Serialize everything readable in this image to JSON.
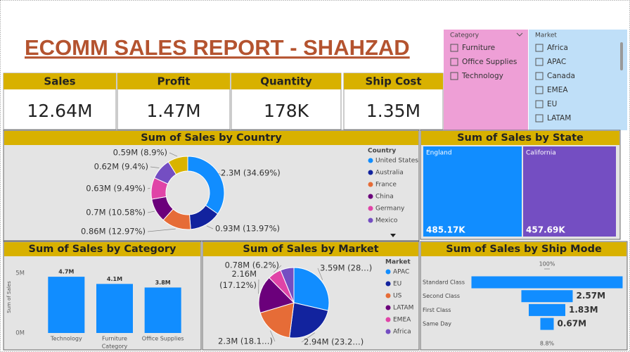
{
  "header": {
    "title": "ECOMM SALES REPORT - SHAHZAD"
  },
  "kpis": [
    {
      "label": "Sales",
      "value": "12.64M"
    },
    {
      "label": "Profit",
      "value": "1.47M"
    },
    {
      "label": "Quantity",
      "value": "178K"
    },
    {
      "label": "Ship Cost",
      "value": "1.35M"
    }
  ],
  "slicers": [
    {
      "title": "Category",
      "items": [
        "Furniture",
        "Office Supplies",
        "Technology"
      ]
    },
    {
      "title": "Market",
      "items": [
        "Africa",
        "APAC",
        "Canada",
        "EMEA",
        "EU",
        "LATAM"
      ]
    }
  ],
  "chart_data": [
    {
      "type": "donut",
      "title": "Sum of Sales by Country",
      "legend_title": "Country",
      "categories": [
        "United States",
        "Australia",
        "France",
        "China",
        "Germany",
        "Mexico",
        null
      ],
      "values": [
        2.3,
        0.93,
        0.86,
        0.7,
        0.63,
        0.62,
        0.59
      ],
      "value_labels": [
        "2.3M (34.69%)",
        "0.93M (13.97%)",
        "0.86M (12.97%)",
        "0.7M (10.58%)",
        "0.63M (9.49%)",
        "0.62M (9.4%)",
        "0.59M (8.9%)"
      ],
      "colors": [
        "#118dff",
        "#12239e",
        "#e66c37",
        "#6b007b",
        "#e044a7",
        "#744ec2",
        "#d9b300"
      ]
    },
    {
      "type": "treemap",
      "title": "Sum of Sales by State",
      "categories": [
        "England",
        "California"
      ],
      "values": [
        485.17,
        457.69
      ],
      "value_labels": [
        "485.17K",
        "457.69K"
      ],
      "colors": [
        "#118dff",
        "#744ec2"
      ]
    },
    {
      "type": "bar",
      "title": "Sum of Sales by Category",
      "x_label": "Category",
      "y_label": "Sum of Sales",
      "categories": [
        "Technology",
        "Furniture",
        "Office Supplies"
      ],
      "values": [
        4.7,
        4.1,
        3.8
      ],
      "value_labels": [
        "4.7M",
        "4.1M",
        "3.8M"
      ],
      "color": "#118dff",
      "ylim": [
        0,
        5
      ],
      "yticks": [
        {
          "value": 0,
          "label": "0M"
        },
        {
          "value": 5,
          "label": "5M"
        }
      ]
    },
    {
      "type": "pie",
      "title": "Sum of Sales by Market",
      "legend_title": "Market",
      "categories": [
        "APAC",
        "EU",
        "US",
        "LATAM",
        "EMEA",
        "Africa"
      ],
      "values": [
        3.59,
        2.94,
        2.3,
        2.16,
        0.78,
        0.78
      ],
      "value_labels": [
        "3.59M (28…)",
        "2.94M (23.2…)",
        "2.3M (18.1…)",
        "2.16M (17.12%)",
        "0.78M (6.2%)",
        null
      ],
      "colors": [
        "#118dff",
        "#12239e",
        "#e66c37",
        "#6b007b",
        "#e044a7",
        "#744ec2"
      ]
    },
    {
      "type": "funnel",
      "title": "Sum of Sales by Ship Mode",
      "categories": [
        "Standard Class",
        "Second Class",
        "First Class",
        "Same Day"
      ],
      "values": [
        7.57,
        2.57,
        1.83,
        0.67
      ],
      "value_labels": [
        null,
        "2.57M",
        "1.83M",
        "0.67M"
      ],
      "annotations": [
        "100%",
        "8.8%"
      ],
      "color": "#118dff"
    }
  ]
}
